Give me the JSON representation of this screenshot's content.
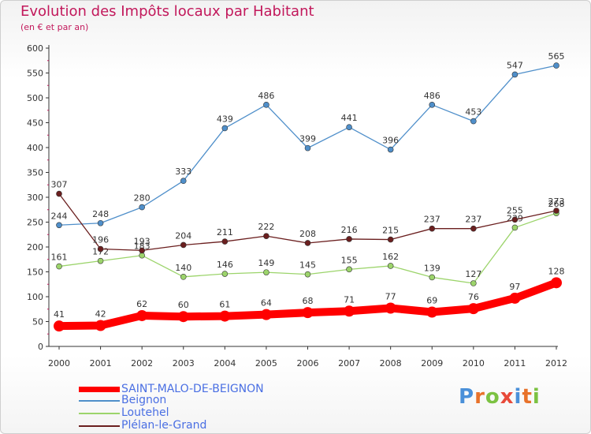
{
  "header": {
    "title": "Evolution des Impôts locaux par Habitant",
    "subtitle": "(en € et par an)"
  },
  "logo": {
    "text": "Proxiti",
    "letters": [
      "P",
      "r",
      "o",
      "x",
      "i",
      "t",
      "i"
    ],
    "colors": [
      "#4a90d9",
      "#e8722a",
      "#7cc242",
      "#e84a3a",
      "#4a90d9",
      "#e8722a",
      "#7cc242"
    ]
  },
  "chart_data": {
    "type": "line",
    "x": [
      "2000",
      "2001",
      "2002",
      "2003",
      "2004",
      "2005",
      "2006",
      "2007",
      "2008",
      "2009",
      "2010",
      "2011",
      "2012"
    ],
    "ylim": [
      0,
      600
    ],
    "yticks": [
      "0",
      "50",
      "100",
      "150",
      "200",
      "250",
      "300",
      "350",
      "400",
      "450",
      "500",
      "550",
      "600"
    ],
    "grid": false,
    "legend_position": "bottom-left",
    "series": [
      {
        "name": "Beignon",
        "color": "#4f8fca",
        "values": [
          244,
          248,
          280,
          333,
          439,
          486,
          399,
          441,
          396,
          486,
          453,
          547,
          565
        ],
        "labels": [
          "244",
          "248",
          "280",
          "333",
          "439",
          "486",
          "399",
          "441",
          "396",
          "486",
          "453",
          "547",
          "565"
        ]
      },
      {
        "name": "Loutehel",
        "color": "#9cd46b",
        "values": [
          161,
          172,
          183,
          140,
          146,
          149,
          145,
          155,
          162,
          139,
          127,
          239,
          268
        ],
        "labels": [
          "161",
          "172",
          "183",
          "140",
          "146",
          "149",
          "145",
          "155",
          "162",
          "139",
          "127",
          "239",
          "268"
        ]
      },
      {
        "name": "Plélan-le-Grand",
        "color": "#6b1f1f",
        "values": [
          307,
          196,
          193,
          204,
          211,
          222,
          208,
          216,
          215,
          237,
          237,
          255,
          273
        ],
        "labels": [
          "307",
          "196",
          "193",
          "204",
          "211",
          "222",
          "208",
          "216",
          "215",
          "237",
          "237",
          "255",
          "273"
        ]
      },
      {
        "name": "SAINT-MALO-DE-BEIGNON",
        "color": "#ff0000",
        "values": [
          41,
          42,
          62,
          60,
          61,
          64,
          68,
          71,
          77,
          69,
          76,
          97,
          128
        ],
        "labels": [
          "41",
          "42",
          "62",
          "60",
          "61",
          "64",
          "68",
          "71",
          "77",
          "69",
          "76",
          "97",
          "128"
        ]
      }
    ]
  },
  "legend": [
    {
      "label": "SAINT-MALO-DE-BEIGNON",
      "color": "#ff0000",
      "thick": true
    },
    {
      "label": "Beignon",
      "color": "#4f8fca",
      "thick": false
    },
    {
      "label": "Loutehel",
      "color": "#9cd46b",
      "thick": false
    },
    {
      "label": "Plélan-le-Grand",
      "color": "#6b1f1f",
      "thick": false
    }
  ]
}
